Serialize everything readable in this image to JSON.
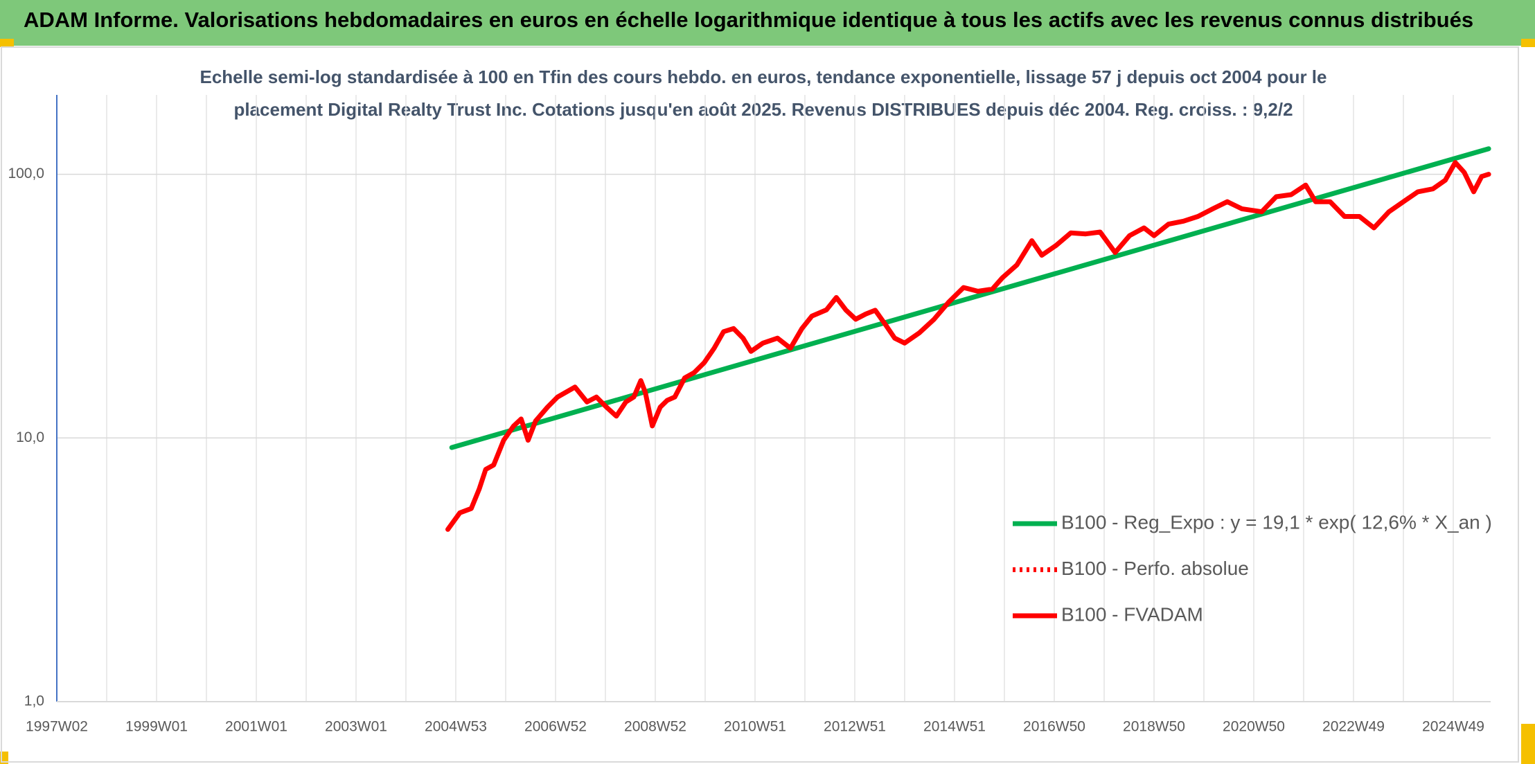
{
  "chart_data": {
    "type": "line",
    "title": "ADAM Informe. Valorisations hebdomadaires en euros en échelle logarithmique identique à tous les actifs avec les revenus connus distribués",
    "subtitle": [
      "Echelle semi-log standardisée à 100 en Tfin des cours hebdo. en euros, tendance exponentielle, lissage 57 j depuis oct 2004 pour le",
      "placement Digital Realty Trust Inc. Cotations jusqu'en août 2025. Revenus DISTRIBUES depuis déc 2004. Reg. croiss. : 9,2/2"
    ],
    "ylog": true,
    "ylim": [
      1,
      200
    ],
    "yticks": [
      {
        "value": 1,
        "label": "1,0"
      },
      {
        "value": 10,
        "label": "10,0"
      },
      {
        "value": 100,
        "label": "100,0"
      }
    ],
    "xlim": [
      1997,
      2025.75
    ],
    "xticks": [
      {
        "value": 1997.0,
        "label": "1997W02"
      },
      {
        "value": 1999.0,
        "label": "1999W01"
      },
      {
        "value": 2001.0,
        "label": "2001W01"
      },
      {
        "value": 2003.0,
        "label": "2003W01"
      },
      {
        "value": 2005.0,
        "label": "2004W53"
      },
      {
        "value": 2007.0,
        "label": "2006W52"
      },
      {
        "value": 2009.0,
        "label": "2008W52"
      },
      {
        "value": 2011.0,
        "label": "2010W51"
      },
      {
        "value": 2013.0,
        "label": "2012W51"
      },
      {
        "value": 2015.0,
        "label": "2014W51"
      },
      {
        "value": 2017.0,
        "label": "2016W50"
      },
      {
        "value": 2019.0,
        "label": "2018W50"
      },
      {
        "value": 2021.0,
        "label": "2020W50"
      },
      {
        "value": 2023.0,
        "label": "2022W49"
      },
      {
        "value": 2025.0,
        "label": "2024W49"
      }
    ],
    "xminor_ticks": [
      1998,
      2000,
      2002,
      2004,
      2006,
      2008,
      2010,
      2012,
      2014,
      2016,
      2018,
      2020,
      2022,
      2024
    ],
    "grid": true,
    "legend": "lower right",
    "series": [
      {
        "name": "B100 - Reg_Expo : y = 19,1 * exp( 12,6% *  X_an )",
        "color": "#00b050",
        "dash": "solid",
        "x": [
          2004.92,
          2025.71
        ],
        "values": [
          9.2,
          125
        ]
      },
      {
        "name": "B100 - Perfo. absolue",
        "color": "#ff0000",
        "dash": "dotted",
        "x": [],
        "values": []
      },
      {
        "name": "B100 - FVADAM",
        "color": "#ff0000",
        "dash": "solid",
        "x": [
          2004.84,
          2005.08,
          2005.31,
          2005.47,
          2005.6,
          2005.76,
          2005.96,
          2006.16,
          2006.31,
          2006.45,
          2006.6,
          2006.84,
          2007.04,
          2007.39,
          2007.63,
          2007.82,
          2008.02,
          2008.22,
          2008.41,
          2008.57,
          2008.71,
          2008.8,
          2008.94,
          2009.1,
          2009.24,
          2009.39,
          2009.59,
          2009.78,
          2009.98,
          2010.18,
          2010.37,
          2010.57,
          2010.76,
          2010.92,
          2011.16,
          2011.45,
          2011.71,
          2011.94,
          2012.14,
          2012.43,
          2012.63,
          2012.82,
          2013.02,
          2013.22,
          2013.41,
          2013.61,
          2013.8,
          2014.0,
          2014.29,
          2014.59,
          2014.88,
          2015.18,
          2015.47,
          2015.76,
          2015.96,
          2016.25,
          2016.55,
          2016.75,
          2017.04,
          2017.33,
          2017.63,
          2017.92,
          2018.22,
          2018.51,
          2018.8,
          2019.0,
          2019.29,
          2019.59,
          2019.88,
          2020.18,
          2020.47,
          2020.76,
          2021.16,
          2021.45,
          2021.75,
          2022.04,
          2022.24,
          2022.53,
          2022.82,
          2023.12,
          2023.41,
          2023.71,
          2024.0,
          2024.29,
          2024.59,
          2024.84,
          2025.04,
          2025.22,
          2025.41,
          2025.57,
          2025.71
        ],
        "values": [
          4.5,
          5.2,
          5.4,
          6.4,
          7.6,
          7.9,
          9.8,
          11.1,
          11.8,
          9.8,
          11.6,
          13.1,
          14.3,
          15.6,
          13.7,
          14.3,
          13.1,
          12.1,
          13.7,
          14.3,
          16.5,
          14.9,
          11.1,
          13.1,
          13.9,
          14.3,
          16.9,
          17.7,
          19.3,
          21.9,
          25.3,
          26.0,
          23.9,
          21.3,
          22.9,
          23.9,
          21.9,
          26.0,
          29.0,
          30.6,
          34.1,
          30.6,
          28.2,
          29.5,
          30.5,
          27.0,
          23.9,
          22.9,
          25.0,
          28.2,
          32.7,
          37.2,
          36.0,
          36.7,
          40.5,
          45.3,
          56.0,
          49.3,
          53.8,
          59.9,
          59.4,
          60.4,
          50.5,
          58.5,
          62.6,
          58.5,
          64.7,
          66.4,
          69.2,
          74.0,
          78.7,
          74.0,
          72.1,
          82.2,
          83.7,
          91.0,
          78.7,
          78.7,
          69.2,
          69.2,
          62.6,
          72.1,
          78.7,
          85.8,
          88.0,
          95.0,
          110.8,
          101.7,
          85.8,
          98.1,
          100
        ]
      }
    ]
  }
}
